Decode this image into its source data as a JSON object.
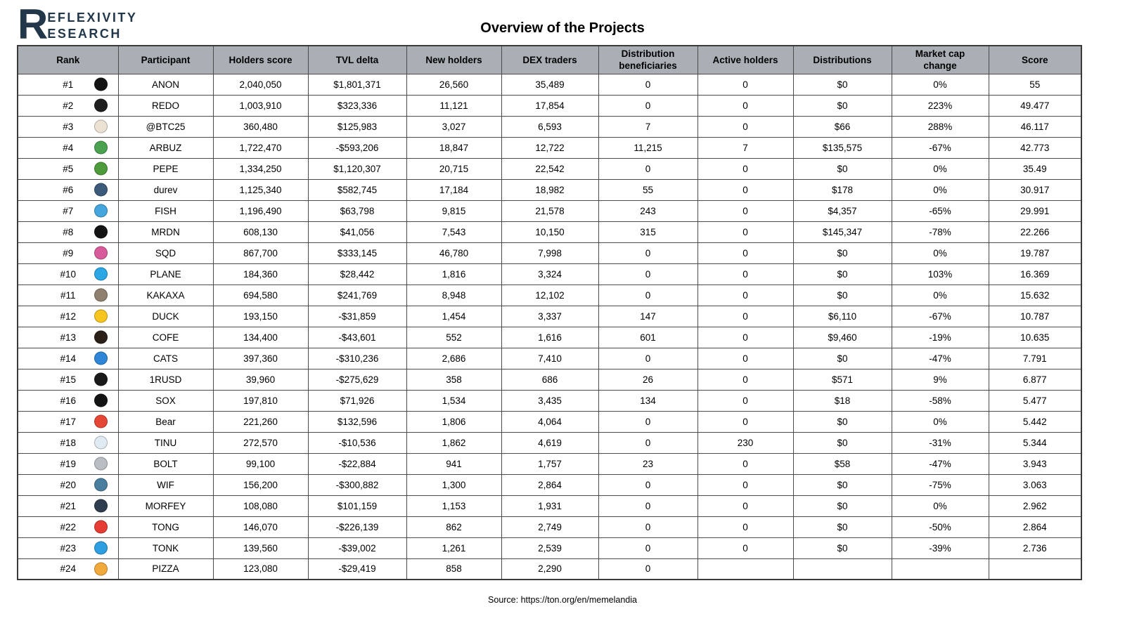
{
  "logo": {
    "initial": "R",
    "line1": "EFLEXIVITY",
    "line2": "ESEARCH",
    "color": "#22384a"
  },
  "title": "Overview of the Projects",
  "source": "Source: https://ton.org/en/memelandia",
  "table": {
    "header_bg": "#a9afb5",
    "headers": [
      "Rank",
      "Participant",
      "Holders score",
      "TVL delta",
      "New holders",
      "DEX traders",
      "Distribution beneficiaries",
      "Active holders",
      "Distributions",
      "Market cap change",
      "Score"
    ],
    "rows": [
      {
        "rank": "#1",
        "icon": "anon-eightball-icon",
        "icon_color": "#141414",
        "participant": "ANON",
        "values": [
          "2,040,050",
          "$1,801,371",
          "26,560",
          "35,489",
          "0",
          "0",
          "$0",
          "0%",
          "55"
        ]
      },
      {
        "rank": "#2",
        "icon": "redo-penguin-icon",
        "icon_color": "#1f1f1f",
        "participant": "REDO",
        "values": [
          "1,003,910",
          "$323,336",
          "11,121",
          "17,854",
          "0",
          "0",
          "$0",
          "223%",
          "49.477"
        ]
      },
      {
        "rank": "#3",
        "icon": "btc25-hamster-icon",
        "icon_color": "#ece2d4",
        "participant": "@BTC25",
        "values": [
          "360,480",
          "$125,983",
          "3,027",
          "6,593",
          "7",
          "0",
          "$66",
          "288%",
          "46.117"
        ]
      },
      {
        "rank": "#4",
        "icon": "arbuz-watermelon-icon",
        "icon_color": "#4aa14f",
        "participant": "ARBUZ",
        "values": [
          "1,722,470",
          "-$593,206",
          "18,847",
          "12,722",
          "11,215",
          "7",
          "$135,575",
          "-67%",
          "42.773"
        ]
      },
      {
        "rank": "#5",
        "icon": "pepe-frog-icon",
        "icon_color": "#4e9b3c",
        "participant": "PEPE",
        "values": [
          "1,334,250",
          "$1,120,307",
          "20,715",
          "22,542",
          "0",
          "0",
          "$0",
          "0%",
          "35.49"
        ]
      },
      {
        "rank": "#6",
        "icon": "durev-face-icon",
        "icon_color": "#3c5a7a",
        "participant": "durev",
        "values": [
          "1,125,340",
          "$582,745",
          "17,184",
          "18,982",
          "55",
          "0",
          "$178",
          "0%",
          "30.917"
        ]
      },
      {
        "rank": "#7",
        "icon": "fish-icon",
        "icon_color": "#45a5dd",
        "participant": "FISH",
        "values": [
          "1,196,490",
          "$63,798",
          "9,815",
          "21,578",
          "243",
          "0",
          "$4,357",
          "-65%",
          "29.991"
        ]
      },
      {
        "rank": "#8",
        "icon": "mrdn-icon",
        "icon_color": "#141414",
        "participant": "MRDN",
        "values": [
          "608,130",
          "$41,056",
          "7,543",
          "10,150",
          "315",
          "0",
          "$145,347",
          "-78%",
          "22.266"
        ]
      },
      {
        "rank": "#9",
        "icon": "sqd-icon",
        "icon_color": "#d85b9b",
        "participant": "SQD",
        "values": [
          "867,700",
          "$333,145",
          "46,780",
          "7,998",
          "0",
          "0",
          "$0",
          "0%",
          "19.787"
        ]
      },
      {
        "rank": "#10",
        "icon": "plane-paper-plane-icon",
        "icon_color": "#2aa7e4",
        "participant": "PLANE",
        "values": [
          "184,360",
          "$28,442",
          "1,816",
          "3,324",
          "0",
          "0",
          "$0",
          "103%",
          "16.369"
        ]
      },
      {
        "rank": "#11",
        "icon": "kakaxa-icon",
        "icon_color": "#8f8070",
        "participant": "KAKAXA",
        "values": [
          "694,580",
          "$241,769",
          "8,948",
          "12,102",
          "0",
          "0",
          "$0",
          "0%",
          "15.632"
        ]
      },
      {
        "rank": "#12",
        "icon": "duck-icon",
        "icon_color": "#f6c51e",
        "participant": "DUCK",
        "values": [
          "193,150",
          "-$31,859",
          "1,454",
          "3,337",
          "147",
          "0",
          "$6,110",
          "-67%",
          "10.787"
        ]
      },
      {
        "rank": "#13",
        "icon": "cofe-coffee-cup-icon",
        "icon_color": "#2d2018",
        "participant": "COFE",
        "values": [
          "134,400",
          "-$43,601",
          "552",
          "1,616",
          "601",
          "0",
          "$9,460",
          "-19%",
          "10.635"
        ]
      },
      {
        "rank": "#14",
        "icon": "cats-icon",
        "icon_color": "#2f86d6",
        "participant": "CATS",
        "values": [
          "397,360",
          "-$310,236",
          "2,686",
          "7,410",
          "0",
          "0",
          "$0",
          "-47%",
          "7.791"
        ]
      },
      {
        "rank": "#15",
        "icon": "1rusd-checkered-icon",
        "icon_color": "#1a1a1a",
        "participant": "1RUSD",
        "values": [
          "39,960",
          "-$275,629",
          "358",
          "686",
          "26",
          "0",
          "$571",
          "9%",
          "6.877"
        ]
      },
      {
        "rank": "#16",
        "icon": "sox-icon",
        "icon_color": "#141414",
        "participant": "SOX",
        "values": [
          "197,810",
          "$71,926",
          "1,534",
          "3,435",
          "134",
          "0",
          "$18",
          "-58%",
          "5.477"
        ]
      },
      {
        "rank": "#17",
        "icon": "bear-icon",
        "icon_color": "#e54737",
        "participant": "Bear",
        "values": [
          "221,260",
          "$132,596",
          "1,806",
          "4,064",
          "0",
          "0",
          "$0",
          "0%",
          "5.442"
        ]
      },
      {
        "rank": "#18",
        "icon": "tinu-cat-icon",
        "icon_color": "#dfeaf3",
        "participant": "TINU",
        "values": [
          "272,570",
          "-$10,536",
          "1,862",
          "4,619",
          "0",
          "230",
          "$0",
          "-31%",
          "5.344"
        ]
      },
      {
        "rank": "#19",
        "icon": "bolt-flashlight-icon",
        "icon_color": "#b9bec4",
        "participant": "BOLT",
        "values": [
          "99,100",
          "-$22,884",
          "941",
          "1,757",
          "23",
          "0",
          "$58",
          "-47%",
          "3.943"
        ]
      },
      {
        "rank": "#20",
        "icon": "wif-dog-hat-icon",
        "icon_color": "#4a7e9e",
        "participant": "WIF",
        "values": [
          "156,200",
          "-$300,882",
          "1,300",
          "2,864",
          "0",
          "0",
          "$0",
          "-75%",
          "3.063"
        ]
      },
      {
        "rank": "#21",
        "icon": "morfey-dog-icon",
        "icon_color": "#2f3e4e",
        "participant": "MORFEY",
        "values": [
          "108,080",
          "$101,159",
          "1,153",
          "1,931",
          "0",
          "0",
          "$0",
          "0%",
          "2.962"
        ]
      },
      {
        "rank": "#22",
        "icon": "tong-icon",
        "icon_color": "#e53d35",
        "participant": "TONG",
        "values": [
          "146,070",
          "-$226,139",
          "862",
          "2,749",
          "0",
          "0",
          "$0",
          "-50%",
          "2.864"
        ]
      },
      {
        "rank": "#23",
        "icon": "tonk-icon",
        "icon_color": "#2d9fe0",
        "participant": "TONK",
        "values": [
          "139,560",
          "-$39,002",
          "1,261",
          "2,539",
          "0",
          "0",
          "$0",
          "-39%",
          "2.736"
        ]
      },
      {
        "rank": "#24",
        "icon": "pizza-icon",
        "icon_color": "#f2a93b",
        "participant": "PIZZA",
        "values": [
          "123,080",
          "-$29,419",
          "858",
          "2,290",
          "0",
          "",
          "",
          "",
          ""
        ]
      }
    ]
  }
}
